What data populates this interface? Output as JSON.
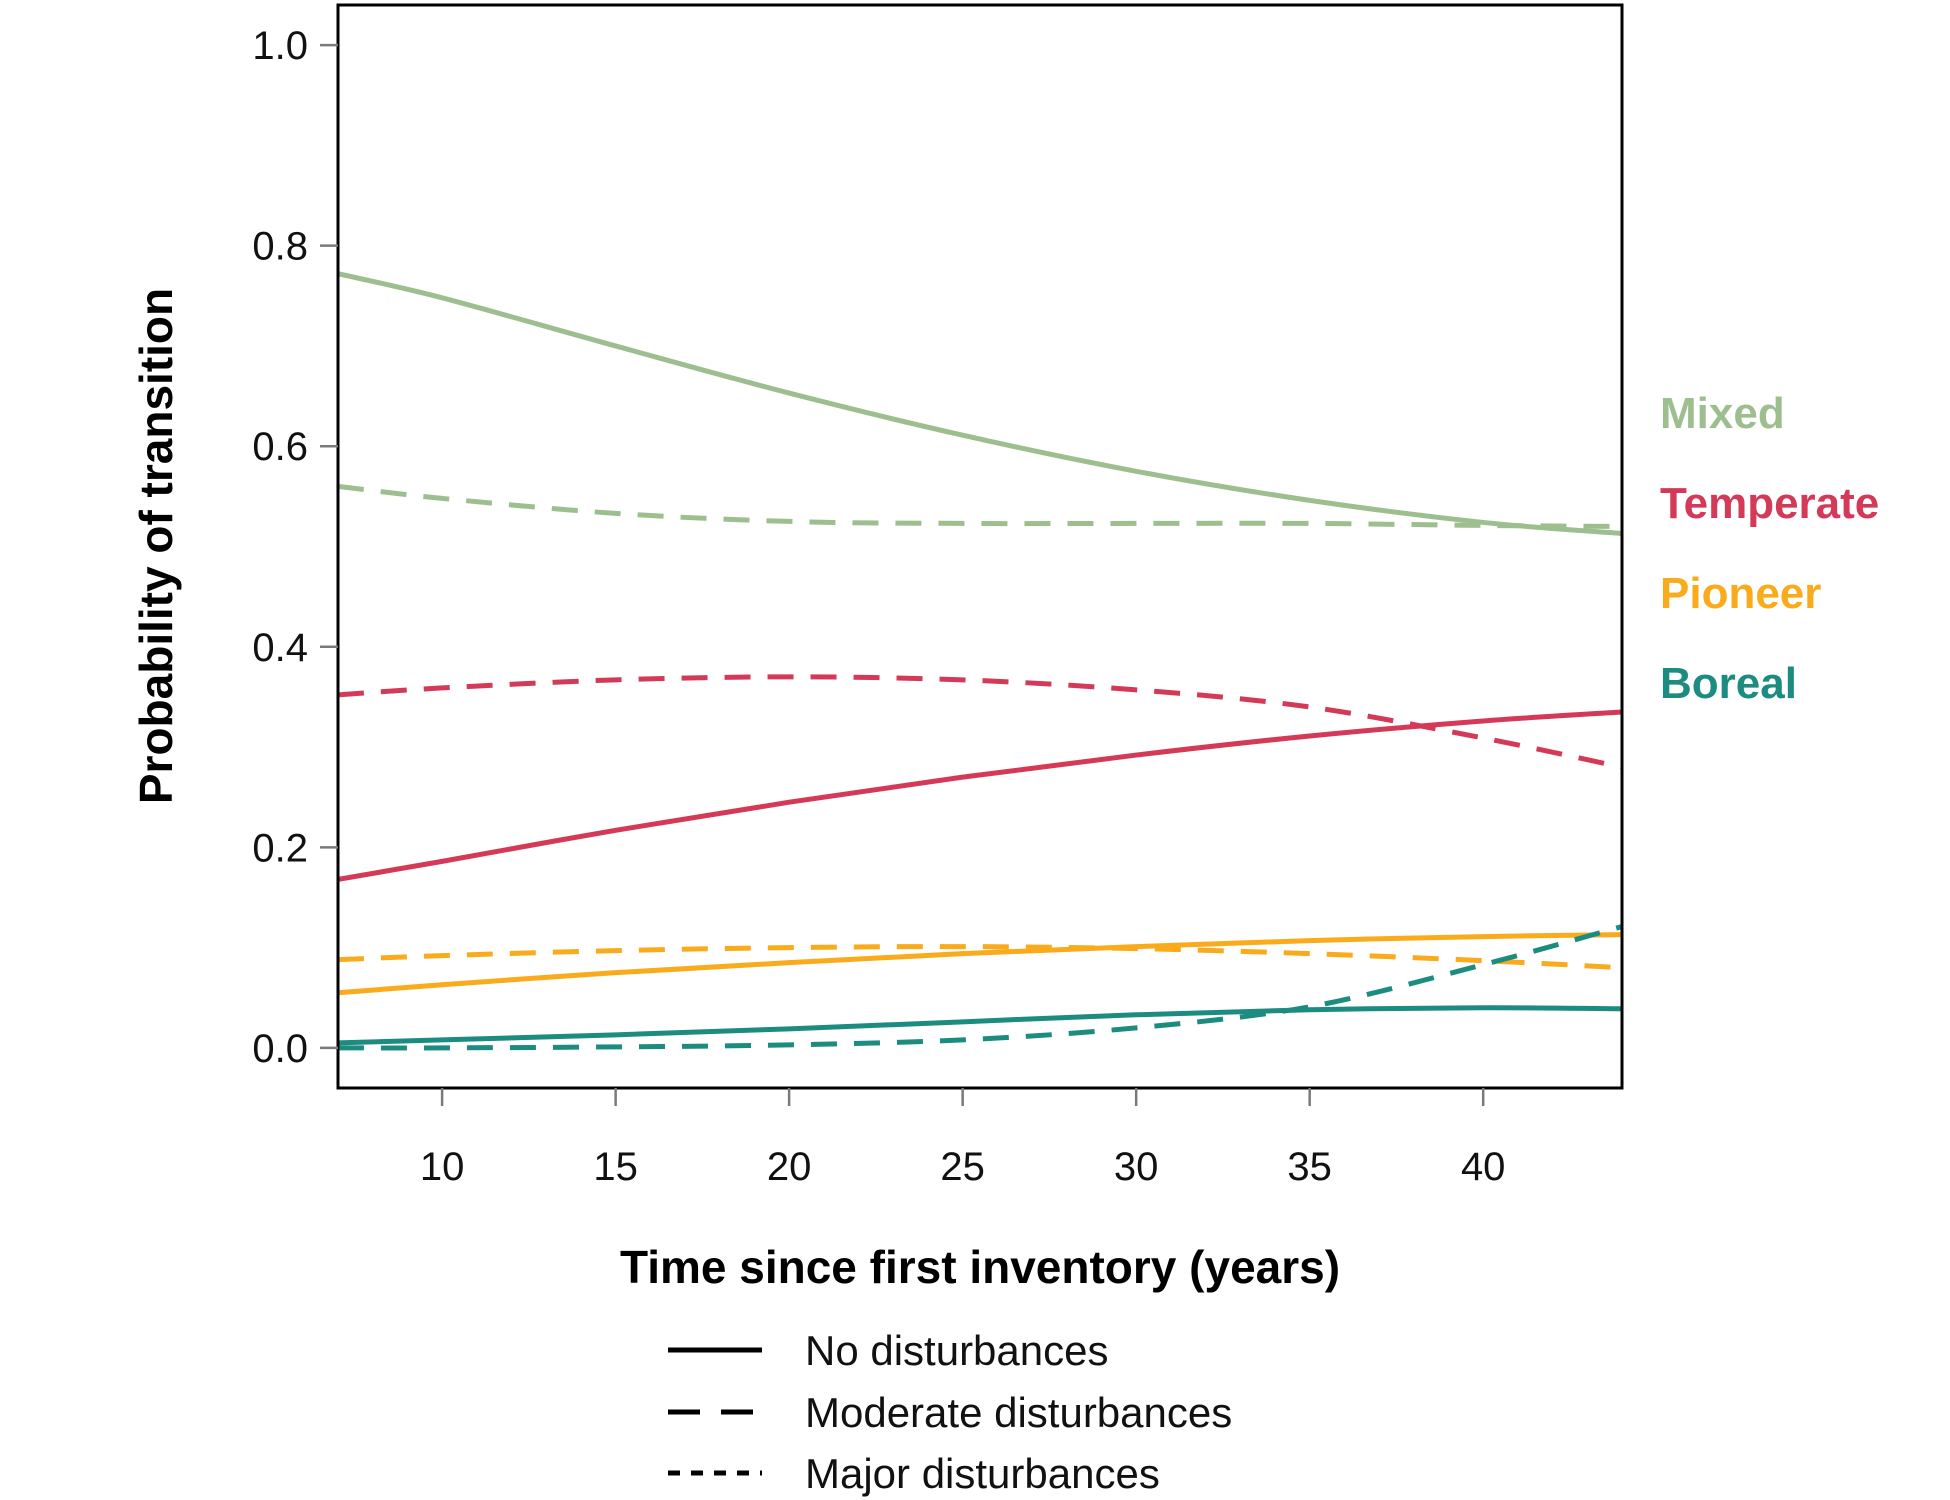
{
  "chart_data": {
    "type": "line",
    "title": "",
    "xlabel": "Time since first inventory (years)",
    "ylabel": "Probability of transition",
    "xlim": [
      7,
      44
    ],
    "ylim": [
      -0.04,
      1.04
    ],
    "xticks": [
      10,
      15,
      20,
      25,
      30,
      35,
      40
    ],
    "yticks": [
      0.0,
      0.2,
      0.4,
      0.6,
      0.8,
      1.0
    ],
    "xtick_labels": [
      "10",
      "15",
      "20",
      "25",
      "30",
      "35",
      "40"
    ],
    "ytick_labels": [
      "0.0",
      "0.2",
      "0.4",
      "0.6",
      "0.8",
      "1.0"
    ],
    "grid": false,
    "groups": [
      {
        "label": "Mixed",
        "color": "#9dbf8f"
      },
      {
        "label": "Temperate",
        "color": "#d43a57"
      },
      {
        "label": "Pioneer",
        "color": "#f9ab1b"
      },
      {
        "label": "Boreal",
        "color": "#1c8c80"
      }
    ],
    "legend": {
      "placement": "bottom",
      "items": [
        {
          "label": "No disturbances",
          "style": "solid"
        },
        {
          "label": "Moderate disturbances",
          "style": "dashed"
        },
        {
          "label": "Major disturbances",
          "style": "dotted"
        }
      ]
    },
    "x": [
      7,
      10,
      15,
      20,
      25,
      30,
      35,
      40,
      44
    ],
    "series": [
      {
        "group": "Mixed",
        "style": "solid",
        "color": "#9dbf8f",
        "values": [
          0.772,
          0.748,
          0.7,
          0.653,
          0.611,
          0.575,
          0.546,
          0.524,
          0.513
        ]
      },
      {
        "group": "Mixed",
        "style": "dashed",
        "color": "#9dbf8f",
        "values": [
          0.56,
          0.548,
          0.533,
          0.525,
          0.523,
          0.523,
          0.523,
          0.521,
          0.52
        ]
      },
      {
        "group": "Temperate",
        "style": "solid",
        "color": "#d43a57",
        "values": [
          0.168,
          0.186,
          0.217,
          0.245,
          0.27,
          0.292,
          0.311,
          0.326,
          0.335
        ]
      },
      {
        "group": "Temperate",
        "style": "dashed",
        "color": "#d43a57",
        "values": [
          0.352,
          0.359,
          0.367,
          0.37,
          0.367,
          0.357,
          0.34,
          0.309,
          0.28
        ]
      },
      {
        "group": "Pioneer",
        "style": "solid",
        "color": "#f9ab1b",
        "values": [
          0.055,
          0.063,
          0.075,
          0.085,
          0.094,
          0.101,
          0.107,
          0.111,
          0.113
        ]
      },
      {
        "group": "Pioneer",
        "style": "dashed",
        "color": "#f9ab1b",
        "values": [
          0.088,
          0.092,
          0.097,
          0.1,
          0.101,
          0.099,
          0.094,
          0.087,
          0.08
        ]
      },
      {
        "group": "Boreal",
        "style": "solid",
        "color": "#1c8c80",
        "values": [
          0.005,
          0.008,
          0.013,
          0.019,
          0.026,
          0.033,
          0.038,
          0.04,
          0.039
        ]
      },
      {
        "group": "Boreal",
        "style": "dashed",
        "color": "#1c8c80",
        "values": [
          0.0,
          0.0,
          0.001,
          0.003,
          0.008,
          0.02,
          0.041,
          0.083,
          0.121
        ]
      }
    ]
  }
}
